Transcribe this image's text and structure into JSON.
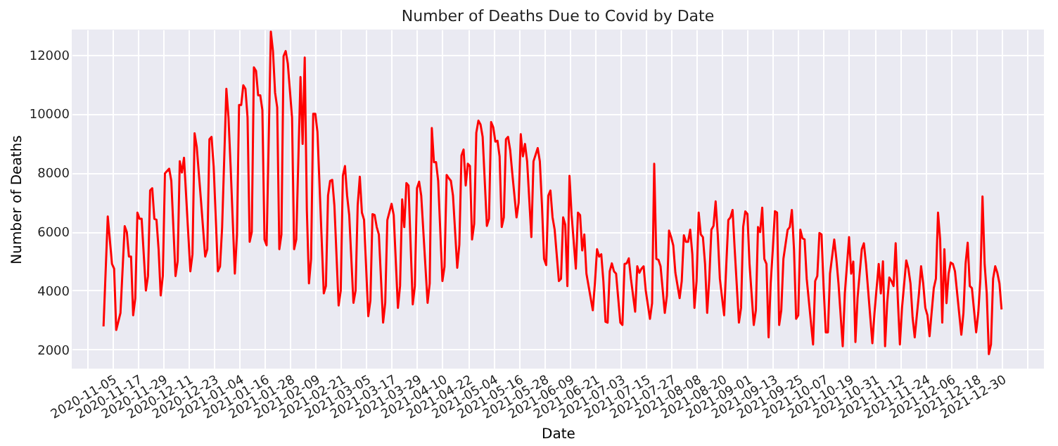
{
  "chart_data": {
    "type": "line",
    "title": "Number of Deaths Due to Covid by Date",
    "xlabel": "Date",
    "ylabel": "Number of Deaths",
    "xlim": [
      "2020-10-17",
      "2022-01-19"
    ],
    "ylim": [
      1350,
      12850
    ],
    "yticks": [
      2000,
      4000,
      6000,
      8000,
      10000,
      12000
    ],
    "xticks": [
      {
        "value": "2020-10-24",
        "label": null
      },
      "2020-11-05",
      "2020-11-17",
      "2020-11-29",
      "2020-12-11",
      "2020-12-23",
      "2021-01-04",
      "2021-01-16",
      "2021-01-28",
      "2021-02-09",
      "2021-02-21",
      "2021-03-05",
      "2021-03-17",
      "2021-03-29",
      "2021-04-10",
      "2021-04-22",
      "2021-05-04",
      "2021-05-16",
      "2021-05-28",
      "2021-06-09",
      "2021-06-21",
      "2021-07-03",
      "2021-07-15",
      "2021-07-27",
      "2021-08-08",
      "2021-08-20",
      "2021-09-01",
      "2021-09-13",
      "2021-09-25",
      "2021-10-07",
      "2021-10-19",
      "2021-10-31",
      "2021-11-12",
      "2021-11-24",
      "2021-12-06",
      "2021-12-18",
      "2021-12-30",
      {
        "value": "2022-01-11",
        "label": null
      }
    ],
    "grid": true,
    "marker": "none",
    "line_style": "solid",
    "series": [
      {
        "color": "#ff0000",
        "x": [
          "2020-11-01",
          "2020-11-03",
          "2020-11-05",
          "2020-11-06",
          "2020-11-07",
          "2020-11-09",
          "2020-11-11",
          "2020-11-12",
          "2020-11-13",
          "2020-11-14",
          "2020-11-15",
          "2020-11-16",
          "2020-11-17",
          "2020-11-18",
          "2020-11-19",
          "2020-11-21",
          "2020-11-22",
          "2020-11-23",
          "2020-11-24",
          "2020-11-25",
          "2020-11-26",
          "2020-11-27",
          "2020-11-28",
          "2020-11-29",
          "2020-11-30",
          "2020-12-02",
          "2020-12-03",
          "2020-12-05",
          "2020-12-06",
          "2020-12-07",
          "2020-12-08",
          "2020-12-09",
          "2020-12-12",
          "2020-12-13",
          "2020-12-14",
          "2020-12-15",
          "2020-12-17",
          "2020-12-19",
          "2020-12-20",
          "2020-12-21",
          "2020-12-22",
          "2020-12-23",
          "2020-12-25",
          "2020-12-26",
          "2020-12-27",
          "2020-12-29",
          "2020-12-30",
          "2020-12-31",
          "2021-01-02",
          "2021-01-03",
          "2021-01-04",
          "2021-01-05",
          "2021-01-06",
          "2021-01-07",
          "2021-01-08",
          "2021-01-09",
          "2021-01-10",
          "2021-01-11",
          "2021-01-12",
          "2021-01-13",
          "2021-01-14",
          "2021-01-15",
          "2021-01-16",
          "2021-01-17",
          "2021-01-19",
          "2021-01-20",
          "2021-01-21",
          "2021-01-22",
          "2021-01-23",
          "2021-01-24",
          "2021-01-25",
          "2021-01-26",
          "2021-01-27",
          "2021-01-29",
          "2021-01-30",
          "2021-01-31",
          "2021-02-02",
          "2021-02-03",
          "2021-02-04",
          "2021-02-05",
          "2021-02-06",
          "2021-02-07",
          "2021-02-08",
          "2021-02-09",
          "2021-02-10",
          "2021-02-13",
          "2021-02-14",
          "2021-02-15",
          "2021-02-16",
          "2021-02-17",
          "2021-02-18",
          "2021-02-20",
          "2021-02-21",
          "2021-02-22",
          "2021-02-23",
          "2021-02-24",
          "2021-02-25",
          "2021-02-27",
          "2021-02-28",
          "2021-03-01",
          "2021-03-02",
          "2021-03-03",
          "2021-03-04",
          "2021-03-06",
          "2021-03-07",
          "2021-03-08",
          "2021-03-09",
          "2021-03-10",
          "2021-03-11",
          "2021-03-13",
          "2021-03-14",
          "2021-03-15",
          "2021-03-17",
          "2021-03-18",
          "2021-03-20",
          "2021-03-21",
          "2021-03-22",
          "2021-03-23",
          "2021-03-24",
          "2021-03-25",
          "2021-03-27",
          "2021-03-28",
          "2021-03-29",
          "2021-03-30",
          "2021-03-31",
          "2021-04-03",
          "2021-04-04",
          "2021-04-05",
          "2021-04-06",
          "2021-04-07",
          "2021-04-08",
          "2021-04-10",
          "2021-04-11",
          "2021-04-12",
          "2021-04-13",
          "2021-04-14",
          "2021-04-15",
          "2021-04-17",
          "2021-04-18",
          "2021-04-19",
          "2021-04-20",
          "2021-04-21",
          "2021-04-22",
          "2021-04-23",
          "2021-04-24",
          "2021-04-25",
          "2021-04-26",
          "2021-04-27",
          "2021-04-28",
          "2021-04-29",
          "2021-05-01",
          "2021-05-02",
          "2021-05-03",
          "2021-05-04",
          "2021-05-05",
          "2021-05-06",
          "2021-05-07",
          "2021-05-08",
          "2021-05-09",
          "2021-05-10",
          "2021-05-11",
          "2021-05-12",
          "2021-05-13",
          "2021-05-15",
          "2021-05-16",
          "2021-05-17",
          "2021-05-18",
          "2021-05-19",
          "2021-05-20",
          "2021-05-22",
          "2021-05-23",
          "2021-05-25",
          "2021-05-26",
          "2021-05-27",
          "2021-05-28",
          "2021-05-29",
          "2021-05-30",
          "2021-05-31",
          "2021-06-01",
          "2021-06-02",
          "2021-06-04",
          "2021-06-05",
          "2021-06-06",
          "2021-06-07",
          "2021-06-08",
          "2021-06-09",
          "2021-06-10",
          "2021-06-12",
          "2021-06-13",
          "2021-06-14",
          "2021-06-15",
          "2021-06-16",
          "2021-06-17",
          "2021-06-20",
          "2021-06-21",
          "2021-06-22",
          "2021-06-23",
          "2021-06-24",
          "2021-06-25",
          "2021-06-26",
          "2021-06-27",
          "2021-06-28",
          "2021-06-29",
          "2021-06-30",
          "2021-07-01",
          "2021-07-03",
          "2021-07-04",
          "2021-07-05",
          "2021-07-06",
          "2021-07-07",
          "2021-07-08",
          "2021-07-10",
          "2021-07-11",
          "2021-07-12",
          "2021-07-13",
          "2021-07-14",
          "2021-07-15",
          "2021-07-17",
          "2021-07-18",
          "2021-07-19",
          "2021-07-20",
          "2021-07-21",
          "2021-07-22",
          "2021-07-24",
          "2021-07-25",
          "2021-07-26",
          "2021-07-27",
          "2021-07-28",
          "2021-07-29",
          "2021-07-31",
          "2021-08-01",
          "2021-08-02",
          "2021-08-03",
          "2021-08-04",
          "2021-08-05",
          "2021-08-06",
          "2021-08-07",
          "2021-08-08",
          "2021-08-09",
          "2021-08-10",
          "2021-08-11",
          "2021-08-12",
          "2021-08-13",
          "2021-08-14",
          "2021-08-15",
          "2021-08-16",
          "2021-08-17",
          "2021-08-18",
          "2021-08-19",
          "2021-08-21",
          "2021-08-22",
          "2021-08-23",
          "2021-08-24",
          "2021-08-25",
          "2021-08-26",
          "2021-08-28",
          "2021-08-29",
          "2021-08-30",
          "2021-08-31",
          "2021-09-01",
          "2021-09-02",
          "2021-09-04",
          "2021-09-05",
          "2021-09-06",
          "2021-09-07",
          "2021-09-08",
          "2021-09-09",
          "2021-09-10",
          "2021-09-11",
          "2021-09-12",
          "2021-09-13",
          "2021-09-14",
          "2021-09-15",
          "2021-09-16",
          "2021-09-17",
          "2021-09-18",
          "2021-09-20",
          "2021-09-21",
          "2021-09-22",
          "2021-09-23",
          "2021-09-24",
          "2021-09-25",
          "2021-09-26",
          "2021-09-27",
          "2021-09-28",
          "2021-09-29",
          "2021-10-02",
          "2021-10-03",
          "2021-10-04",
          "2021-10-05",
          "2021-10-06",
          "2021-10-07",
          "2021-10-08",
          "2021-10-09",
          "2021-10-10",
          "2021-10-12",
          "2021-10-13",
          "2021-10-14",
          "2021-10-16",
          "2021-10-17",
          "2021-10-19",
          "2021-10-20",
          "2021-10-21",
          "2021-10-22",
          "2021-10-23",
          "2021-10-25",
          "2021-10-26",
          "2021-10-27",
          "2021-10-30",
          "2021-10-31",
          "2021-11-01",
          "2021-11-02",
          "2021-11-03",
          "2021-11-04",
          "2021-11-05",
          "2021-11-06",
          "2021-11-07",
          "2021-11-08",
          "2021-11-09",
          "2021-11-10",
          "2021-11-11",
          "2021-11-12",
          "2021-11-13",
          "2021-11-15",
          "2021-11-16",
          "2021-11-17",
          "2021-11-18",
          "2021-11-19",
          "2021-11-21",
          "2021-11-22",
          "2021-11-23",
          "2021-11-24",
          "2021-11-25",
          "2021-11-26",
          "2021-11-28",
          "2021-11-29",
          "2021-11-30",
          "2021-12-01",
          "2021-12-02",
          "2021-12-03",
          "2021-12-04",
          "2021-12-05",
          "2021-12-06",
          "2021-12-07",
          "2021-12-08",
          "2021-12-11",
          "2021-12-12",
          "2021-12-13",
          "2021-12-14",
          "2021-12-15",
          "2021-12-16",
          "2021-12-18",
          "2021-12-19",
          "2021-12-20",
          "2021-12-21",
          "2021-12-22",
          "2021-12-23",
          "2021-12-24",
          "2021-12-25",
          "2021-12-26",
          "2021-12-27",
          "2021-12-28",
          "2021-12-29",
          "2021-12-30"
        ],
        "values": [
          2780,
          6510,
          4900,
          4740,
          2660,
          3240,
          6180,
          5980,
          5150,
          5150,
          3160,
          3740,
          6640,
          6430,
          6430,
          4000,
          4490,
          7390,
          7470,
          6430,
          6400,
          5400,
          3830,
          4490,
          7970,
          8130,
          7720,
          4490,
          4990,
          8380,
          8000,
          8500,
          4650,
          5230,
          9330,
          8880,
          7060,
          5150,
          5400,
          9130,
          9210,
          8220,
          4650,
          4810,
          6150,
          10840,
          9870,
          8220,
          4570,
          5900,
          10290,
          10290,
          10960,
          10840,
          9870,
          5650,
          5980,
          11570,
          11450,
          10620,
          10620,
          10120,
          5730,
          5530,
          12780,
          12120,
          10710,
          10210,
          5400,
          5900,
          11950,
          12120,
          11700,
          9870,
          5400,
          5730,
          11240,
          8970,
          11900,
          6730,
          4240,
          5070,
          9990,
          9990,
          9380,
          3900,
          4150,
          7220,
          7720,
          7750,
          6890,
          3490,
          3990,
          7890,
          8220,
          7220,
          6560,
          3580,
          3990,
          6890,
          7860,
          6640,
          6400,
          3130,
          3660,
          6590,
          6560,
          6150,
          5900,
          2910,
          3580,
          6390,
          6940,
          6560,
          3410,
          4150,
          7090,
          6150,
          7640,
          7560,
          3530,
          4150,
          7470,
          7690,
          7220,
          3580,
          4240,
          9510,
          8350,
          8350,
          7720,
          4320,
          4810,
          7920,
          7810,
          7720,
          7220,
          4770,
          5560,
          8580,
          8780,
          7560,
          8300,
          8220,
          5730,
          6260,
          9350,
          9760,
          9630,
          9210,
          6190,
          6430,
          9710,
          9540,
          9050,
          9080,
          8550,
          6150,
          6480,
          9130,
          9210,
          8760,
          7970,
          6480,
          6980,
          9300,
          8550,
          8970,
          8380,
          5810,
          8380,
          8830,
          8380,
          6890,
          5070,
          4860,
          7220,
          7390,
          6480,
          6060,
          4320,
          4400,
          6480,
          6230,
          4150,
          7890,
          6560,
          4740,
          6640,
          6560,
          5360,
          5900,
          4570,
          3330,
          4240,
          5400,
          5150,
          5230,
          4320,
          2940,
          2910,
          4650,
          4920,
          4650,
          4570,
          2910,
          2830,
          4900,
          4920,
          5090,
          4400,
          3280,
          4820,
          4600,
          4740,
          4820,
          4000,
          3040,
          3570,
          8300,
          5070,
          5040,
          4820,
          3240,
          3830,
          6030,
          5810,
          5530,
          4600,
          3740,
          4320,
          5870,
          5650,
          5650,
          6060,
          5230,
          3410,
          4320,
          6640,
          5900,
          5810,
          4900,
          3240,
          4400,
          6060,
          6190,
          7020,
          5900,
          4400,
          3160,
          4820,
          6390,
          6480,
          6730,
          5400,
          2910,
          3410,
          6150,
          6680,
          6600,
          4900,
          2830,
          3330,
          6150,
          5980,
          6810,
          5070,
          4900,
          2410,
          4240,
          5400,
          6690,
          6640,
          2830,
          3330,
          5070,
          6060,
          6150,
          6730,
          5400,
          3040,
          3160,
          6060,
          5770,
          5730,
          4400,
          2170,
          4320,
          4490,
          5950,
          5900,
          4080,
          2580,
          2580,
          4570,
          5730,
          5070,
          4240,
          2110,
          3900,
          5810,
          4570,
          4980,
          2250,
          3740,
          5400,
          5600,
          4900,
          2210,
          3240,
          4080,
          4900,
          3900,
          4990,
          2110,
          3570,
          4440,
          4320,
          4150,
          5600,
          3740,
          2170,
          3410,
          5020,
          4740,
          4240,
          3080,
          2410,
          3900,
          4820,
          4240,
          3410,
          3160,
          2450,
          4080,
          4400,
          6640,
          5730,
          2910,
          5400,
          3570,
          4570,
          4950,
          4900,
          4650,
          2500,
          3240,
          4900,
          5620,
          4150,
          4080,
          2580,
          3240,
          4400,
          7190,
          4900,
          3900,
          1840,
          2170,
          4400,
          4820,
          4600,
          4240,
          3360
        ]
      }
    ]
  }
}
